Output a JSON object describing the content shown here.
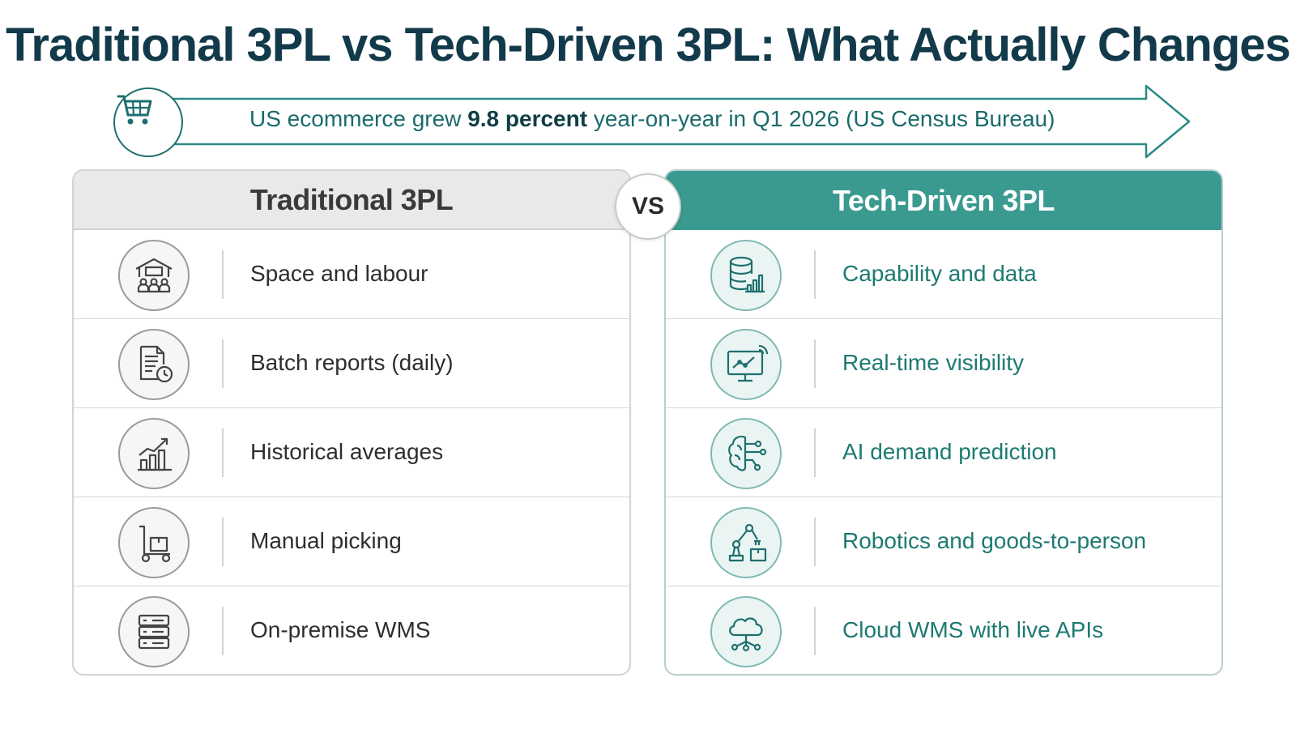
{
  "title": "Traditional 3PL vs Tech-Driven 3PL: What Actually Changes",
  "banner": {
    "icon": "shopping-cart-icon",
    "text_before": "US ecommerce grew ",
    "text_bold": "9.8 percent",
    "text_after": " year-on-year in Q1 2026 (US Census Bureau)"
  },
  "vs_label": "VS",
  "traditional": {
    "heading": "Traditional 3PL",
    "items": [
      {
        "label": "Space and labour",
        "icon": "warehouse-workers-icon"
      },
      {
        "label": "Batch reports (daily)",
        "icon": "report-clock-icon"
      },
      {
        "label": "Historical averages",
        "icon": "bar-chart-trend-icon"
      },
      {
        "label": "Manual picking",
        "icon": "hand-cart-icon"
      },
      {
        "label": "On-premise WMS",
        "icon": "server-rack-icon"
      }
    ]
  },
  "tech": {
    "heading": "Tech-Driven 3PL",
    "items": [
      {
        "label": "Capability and data",
        "icon": "database-chart-icon"
      },
      {
        "label": "Real-time visibility",
        "icon": "monitor-live-icon"
      },
      {
        "label": "AI demand prediction",
        "icon": "ai-brain-icon"
      },
      {
        "label": "Robotics and goods-to-person",
        "icon": "robot-arm-icon"
      },
      {
        "label": "Cloud WMS with live APIs",
        "icon": "cloud-network-icon"
      }
    ]
  },
  "colors": {
    "title": "#123a4a",
    "accent": "#3a9a90",
    "accent_text": "#1d7a72",
    "traditional_header": "#ebe9e7"
  }
}
